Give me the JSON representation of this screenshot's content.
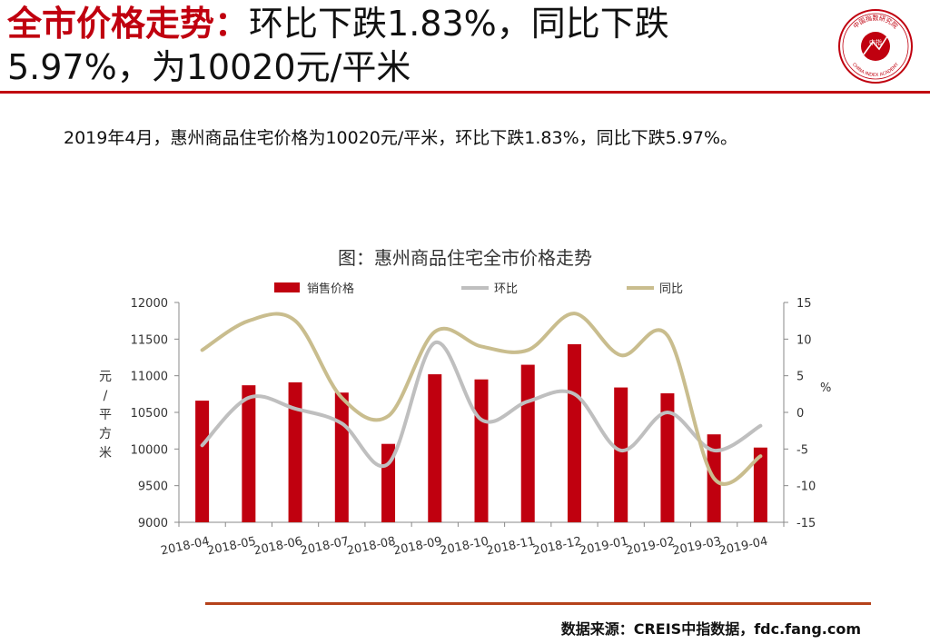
{
  "header": {
    "title_highlight": "全市价格走势：",
    "title_rest_line1": "环比下跌1.83%，同比下跌",
    "title_line2": "5.97%，为10020元/平米"
  },
  "logo": {
    "top_text": "中国指数研究院",
    "center_text": "中指",
    "bottom_text": "CHINA INDEX ACADEMY",
    "color": "#c0000f"
  },
  "summary": "2019年4月，惠州商品住宅价格为10020元/平米，环比下跌1.83%，同比下跌5.97%。",
  "chart_title": "图：惠州商品住宅全市价格走势",
  "source": "数据来源：CREIS中指数据，fdc.fang.com",
  "chart_data": {
    "type": "bar",
    "categories": [
      "2018-04",
      "2018-05",
      "2018-06",
      "2018-07",
      "2018-08",
      "2018-09",
      "2018-10",
      "2018-11",
      "2018-12",
      "2019-01",
      "2019-02",
      "2019-03",
      "2019-04"
    ],
    "series": [
      {
        "name": "销售价格",
        "type": "bar",
        "axis": "left",
        "color": "#c0000f",
        "values": [
          10660,
          10870,
          10910,
          10770,
          10070,
          11020,
          10950,
          11150,
          11430,
          10840,
          10760,
          10200,
          10020
        ]
      },
      {
        "name": "环比",
        "type": "line",
        "axis": "right",
        "color": "#bfbfbf",
        "values": [
          -4.5,
          2.0,
          0.5,
          -1.5,
          -7.0,
          9.5,
          -1.0,
          1.5,
          2.5,
          -5.2,
          0.0,
          -5.2,
          -1.83
        ]
      },
      {
        "name": "同比",
        "type": "line",
        "axis": "right",
        "color": "#c9bd8e",
        "values": [
          8.5,
          12.5,
          12.5,
          2.0,
          -0.5,
          11.0,
          9.0,
          8.5,
          13.5,
          7.8,
          10.5,
          -9.0,
          -5.97
        ]
      }
    ],
    "ylabel": "元/平方米",
    "ylabel_right": "%",
    "ylim": [
      9000,
      12000
    ],
    "yticks": [
      9000,
      9500,
      10000,
      10500,
      11000,
      11500,
      12000
    ],
    "ylim_right": [
      -15,
      15
    ],
    "yticks_right": [
      -15,
      -10,
      -5,
      0,
      5,
      10,
      15
    ],
    "grid": false,
    "legend": "top-center"
  }
}
